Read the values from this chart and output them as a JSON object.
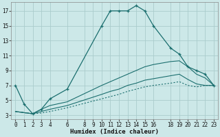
{
  "xlabel": "Humidex (Indice chaleur)",
  "background_color": "#cce8e8",
  "grid_color": "#aacccc",
  "line_color": "#1a6e6e",
  "xlim": [
    -0.5,
    23.5
  ],
  "ylim": [
    2.5,
    18.2
  ],
  "xticks": [
    0,
    1,
    2,
    3,
    4,
    6,
    8,
    9,
    10,
    11,
    12,
    13,
    14,
    15,
    16,
    18,
    19,
    20,
    21,
    22,
    23
  ],
  "yticks": [
    3,
    5,
    7,
    9,
    11,
    13,
    15,
    17
  ],
  "main_x": [
    0,
    1,
    2,
    3,
    4,
    6,
    10,
    11,
    12,
    13,
    14,
    15,
    16,
    18,
    19,
    20,
    21,
    22,
    23
  ],
  "main_y": [
    7.0,
    4.5,
    3.2,
    3.8,
    5.2,
    6.5,
    15.0,
    17.0,
    17.0,
    17.0,
    17.7,
    17.0,
    15.0,
    12.0,
    11.2,
    9.5,
    9.0,
    8.5,
    7.0
  ],
  "line2_x": [
    0,
    2,
    3,
    4,
    6,
    10,
    11,
    12,
    13,
    14,
    15,
    16,
    18,
    19,
    20,
    21,
    22,
    23
  ],
  "line2_y": [
    3.5,
    3.2,
    3.8,
    4.3,
    4.8,
    7.0,
    7.5,
    8.0,
    8.5,
    9.0,
    9.5,
    9.8,
    10.2,
    10.3,
    9.5,
    8.5,
    8.0,
    7.0
  ],
  "line3_x": [
    0,
    2,
    3,
    4,
    6,
    10,
    11,
    12,
    13,
    14,
    15,
    16,
    18,
    19,
    20,
    21,
    22,
    23
  ],
  "line3_y": [
    3.5,
    3.2,
    3.5,
    3.8,
    4.3,
    5.8,
    6.2,
    6.5,
    7.0,
    7.3,
    7.7,
    7.9,
    8.3,
    8.5,
    7.8,
    7.2,
    7.0,
    7.0
  ],
  "line4_x": [
    0,
    2,
    3,
    4,
    6,
    10,
    11,
    12,
    13,
    14,
    15,
    16,
    18,
    19,
    20,
    21,
    22,
    23
  ],
  "line4_y": [
    3.5,
    3.2,
    3.3,
    3.5,
    4.0,
    5.2,
    5.5,
    5.8,
    6.2,
    6.5,
    6.8,
    7.0,
    7.3,
    7.5,
    7.0,
    6.8,
    7.0,
    7.0
  ]
}
